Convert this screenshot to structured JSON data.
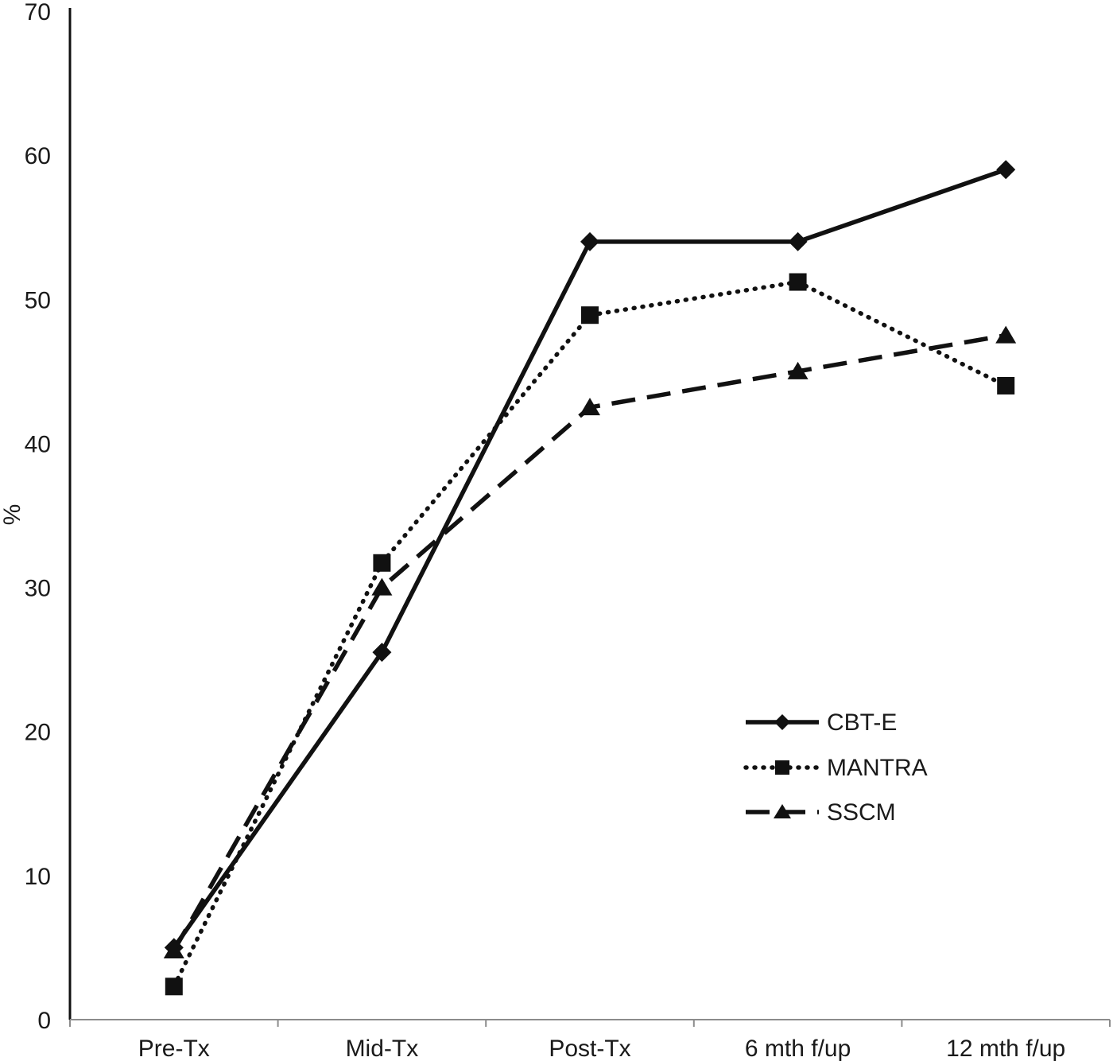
{
  "chart_data": {
    "type": "line",
    "categories": [
      "Pre-Tx",
      "Mid-Tx",
      "Post-Tx",
      "6 mth f/up",
      "12 mth f/up"
    ],
    "series": [
      {
        "name": "CBT-E",
        "line": "solid",
        "marker": "diamond",
        "values": [
          5.0,
          25.5,
          54.0,
          54.0,
          59.0
        ]
      },
      {
        "name": "MANTRA",
        "line": "dotted",
        "marker": "square",
        "values": [
          2.3,
          31.7,
          48.9,
          51.2,
          44.0
        ]
      },
      {
        "name": "SSCM",
        "line": "dashed",
        "marker": "triangle",
        "values": [
          4.8,
          30.0,
          42.5,
          45.0,
          47.5
        ]
      }
    ],
    "title": "",
    "xlabel": "",
    "ylabel": "%",
    "ylim": [
      0,
      70
    ],
    "yticks": [
      0,
      10,
      20,
      30,
      40,
      50,
      60,
      70
    ],
    "grid": "off",
    "legend_position": "right-middle",
    "line_color": "#111111",
    "axis_color": "#111111",
    "x_axis_color": "#8c8c8c"
  }
}
